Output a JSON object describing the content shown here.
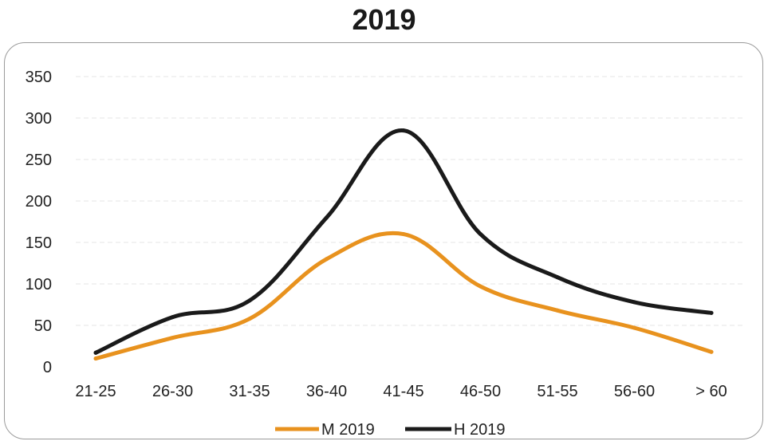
{
  "chart_data": {
    "type": "line",
    "title": "2019",
    "xlabel": "",
    "ylabel": "",
    "categories": [
      "21-25",
      "26-30",
      "31-35",
      "36-40",
      "41-45",
      "46-50",
      "51-55",
      "56-60",
      "> 60"
    ],
    "yticks": [
      "0",
      "50",
      "100",
      "150",
      "200",
      "250",
      "300",
      "350"
    ],
    "ylim": [
      0,
      350
    ],
    "grid": true,
    "legend_position": "bottom",
    "series": [
      {
        "name": "M 2019",
        "color": "#E8921E",
        "values": [
          10,
          35,
          58,
          130,
          160,
          97,
          68,
          47,
          18
        ]
      },
      {
        "name": "H 2019",
        "color": "#1A1A1A",
        "values": [
          17,
          60,
          80,
          180,
          285,
          160,
          108,
          78,
          65
        ]
      }
    ]
  }
}
